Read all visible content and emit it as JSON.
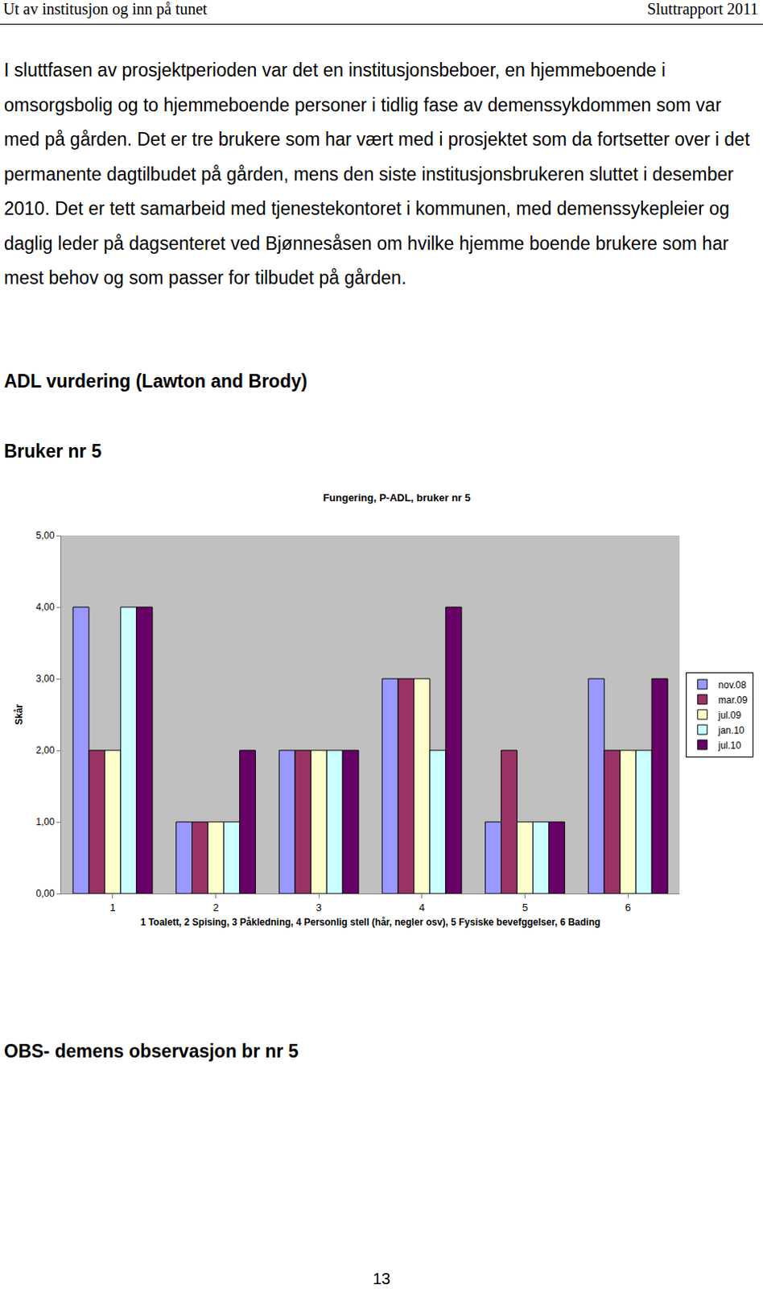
{
  "header": {
    "left": "Ut av institusjon og inn på tunet",
    "right": "Sluttrapport 2011"
  },
  "paragraph": "I sluttfasen av prosjektperioden var det en institusjonsbeboer, en hjemmeboende i omsorgsbolig og to hjemmeboende personer i tidlig fase av demenssykdommen som var med på gården. Det er tre brukere som har vært med i prosjektet som da fortsetter over i det permanente dagtilbudet på gården, mens den siste institusjonsbrukeren sluttet i desember 2010. Det er tett samarbeid med tjenestekontoret i kommunen, med demenssykepleier og daglig leder på dagsenteret ved Bjønnesåsen om hvilke hjemme boende brukere som har mest behov og som passer for tilbudet på gården.",
  "headings": [
    "ADL vurdering (Lawton and Brody)",
    "Bruker nr 5"
  ],
  "chart_data": {
    "type": "bar",
    "title": "Fungering, P-ADL, bruker nr 5",
    "x_label": "1 Toalett, 2 Spising, 3 Påkledning, 4 Personlig stell (hår, negler osv), 5 Fysiske bevefggelser, 6 Bading",
    "y_label": "Skår",
    "categories": [
      "1",
      "2",
      "3",
      "4",
      "5",
      "6"
    ],
    "series": [
      {
        "name": "nov.08",
        "color": "#9999ff",
        "values": [
          4,
          1,
          2,
          3,
          1,
          3
        ]
      },
      {
        "name": "mar.09",
        "color": "#993366",
        "values": [
          2,
          1,
          2,
          3,
          2,
          2
        ]
      },
      {
        "name": "jul.09",
        "color": "#ffffcc",
        "values": [
          2,
          1,
          2,
          3,
          1,
          2
        ]
      },
      {
        "name": "jan.10",
        "color": "#ccffff",
        "values": [
          4,
          1,
          2,
          2,
          1,
          2
        ]
      },
      {
        "name": "jul.10",
        "color": "#660066",
        "values": [
          4,
          2,
          2,
          4,
          1,
          3
        ]
      }
    ],
    "ylim": [
      0,
      5
    ],
    "yticks": [
      {
        "value": 0,
        "label": "0,00"
      },
      {
        "value": 1,
        "label": "1,00"
      },
      {
        "value": 2,
        "label": "2,00"
      },
      {
        "value": 3,
        "label": "3,00"
      },
      {
        "value": 4,
        "label": "4,00"
      },
      {
        "value": 5,
        "label": "5,00"
      }
    ],
    "grid": false,
    "legend": "right"
  },
  "footer_heading": "OBS- demens observasjon br nr 5",
  "page_number": 13
}
